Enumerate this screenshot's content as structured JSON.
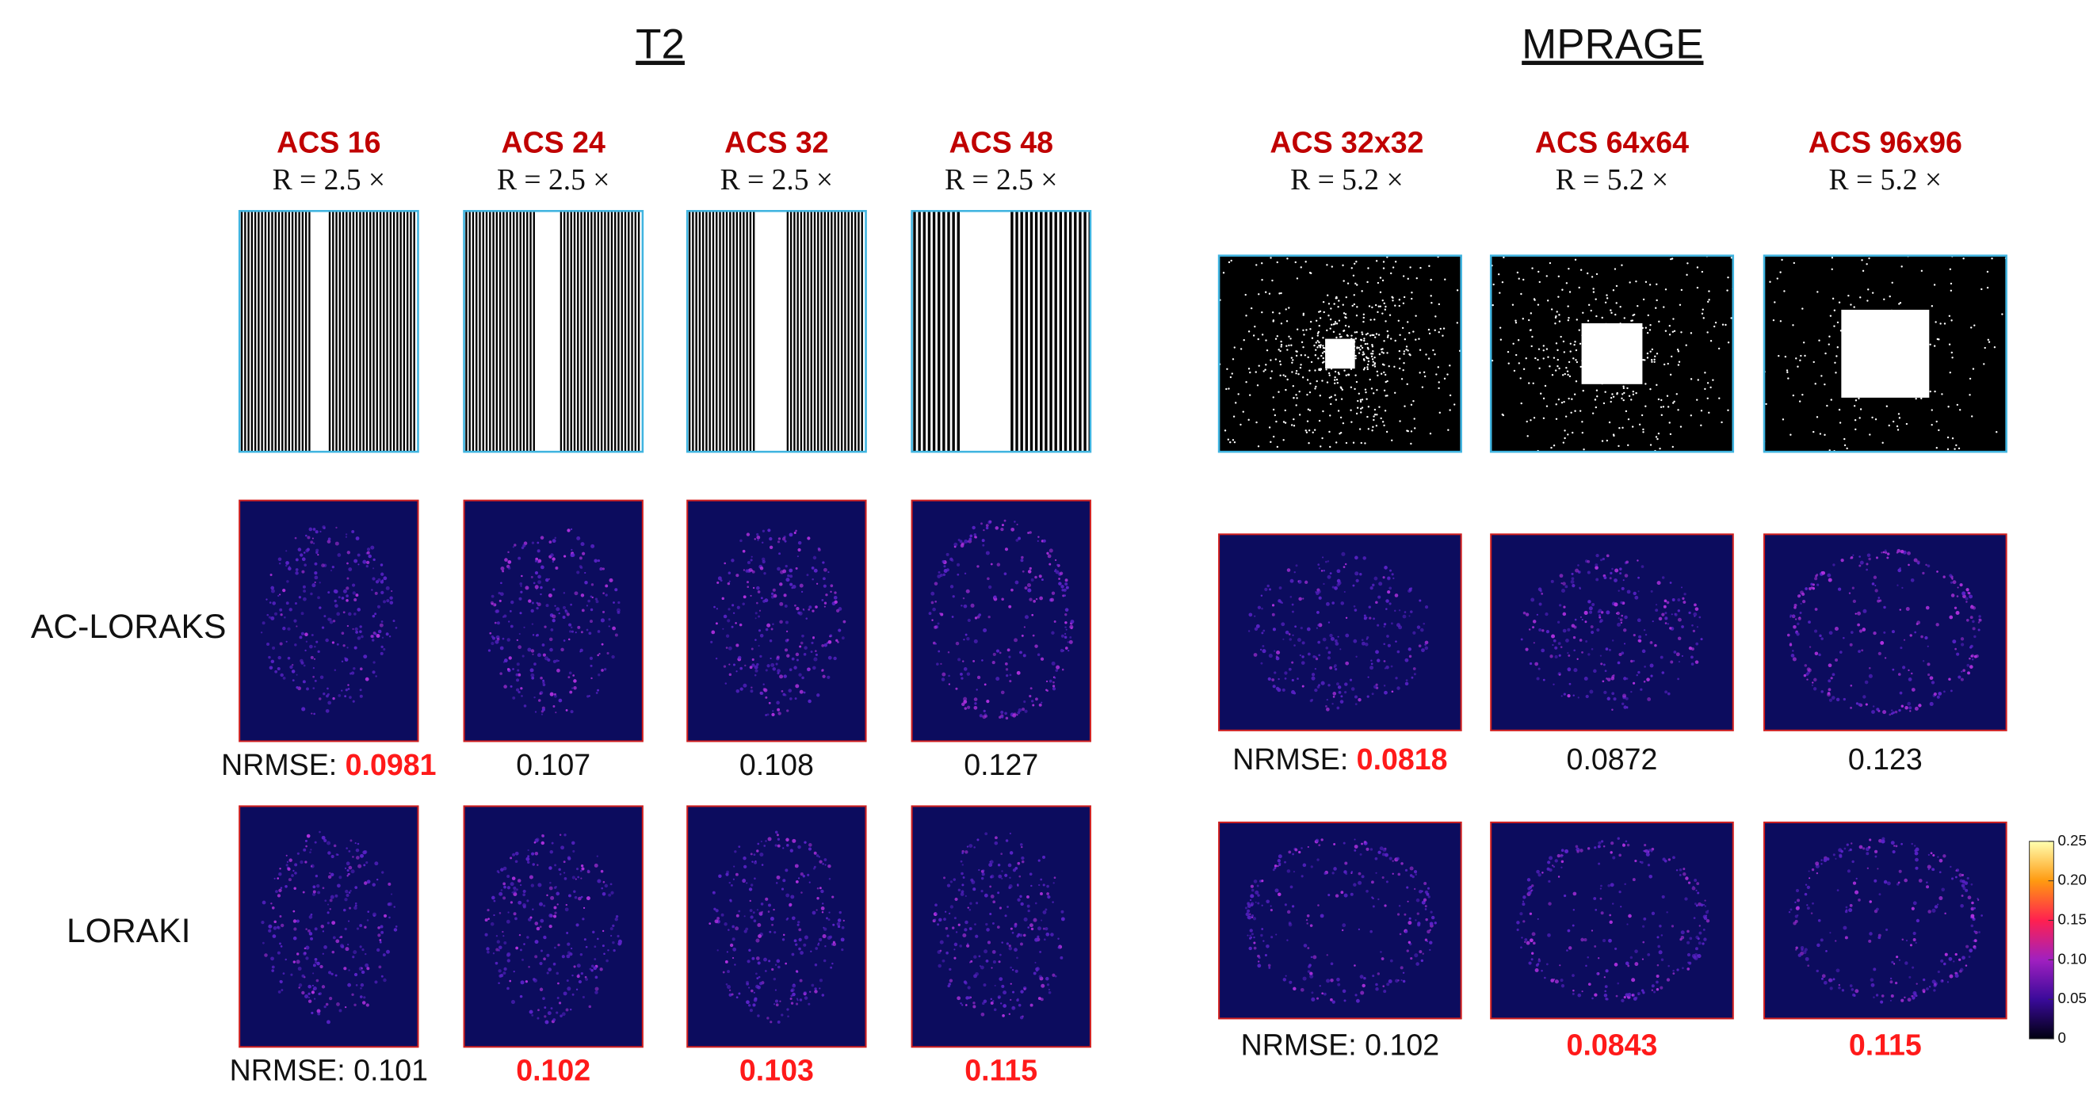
{
  "t2": {
    "title": "T2",
    "nrmse_label": "NRMSE:",
    "columns": [
      {
        "acs": "ACS 16",
        "r": "R = 2.5 ×",
        "ac_loraks": {
          "text": "0.0981",
          "best": true
        },
        "loraki": {
          "text": "0.101",
          "best": false
        }
      },
      {
        "acs": "ACS 24",
        "r": "R = 2.5 ×",
        "ac_loraks": {
          "text": "0.107",
          "best": false
        },
        "loraki": {
          "text": "0.102",
          "best": true
        }
      },
      {
        "acs": "ACS 32",
        "r": "R = 2.5 ×",
        "ac_loraks": {
          "text": "0.108",
          "best": false
        },
        "loraki": {
          "text": "0.103",
          "best": true
        }
      },
      {
        "acs": "ACS 48",
        "r": "R = 2.5 ×",
        "ac_loraks": {
          "text": "0.127",
          "best": false
        },
        "loraki": {
          "text": "0.115",
          "best": true
        }
      }
    ]
  },
  "mprage": {
    "title": "MPRAGE",
    "nrmse_label": "NRMSE:",
    "columns": [
      {
        "acs": "ACS 32x32",
        "r": "R = 5.2 ×",
        "ac_loraks": {
          "text": "0.0818",
          "best": true
        },
        "loraki": {
          "text": "0.102",
          "best": false
        }
      },
      {
        "acs": "ACS 64x64",
        "r": "R = 5.2 ×",
        "ac_loraks": {
          "text": "0.0872",
          "best": false
        },
        "loraki": {
          "text": "0.0843",
          "best": true
        }
      },
      {
        "acs": "ACS 96x96",
        "r": "R = 5.2 ×",
        "ac_loraks": {
          "text": "0.123",
          "best": false
        },
        "loraki": {
          "text": "0.115",
          "best": true
        }
      }
    ]
  },
  "row_labels": [
    "AC-LORAKS",
    "LORAKI"
  ],
  "colorbar": {
    "lim": [
      0,
      0.25
    ],
    "ticks": [
      0,
      0.05,
      {
        "value": 0.1,
        "label": "0.10"
      },
      0.15,
      {
        "value": 0.2,
        "label": "0.20"
      },
      0.25
    ]
  }
}
